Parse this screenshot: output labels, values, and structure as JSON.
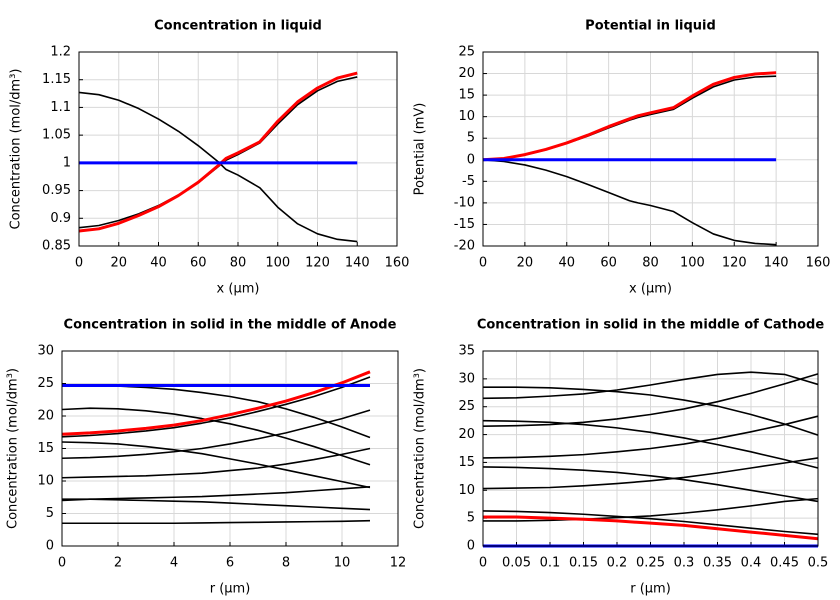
{
  "chart_data": [
    {
      "type": "line",
      "title": "Concentration in liquid",
      "xlabel": "x (µm)",
      "ylabel": "Concentration (mol/dm³)",
      "x": [
        0,
        10,
        20,
        30,
        40,
        50,
        60,
        70,
        74,
        80,
        91,
        100,
        110,
        120,
        130,
        140
      ],
      "series": [
        {
          "color": "#000000",
          "values": [
            1.127,
            1.123,
            1.113,
            1.098,
            1.079,
            1.057,
            1.031,
            1.002,
            0.988,
            0.978,
            0.955,
            0.92,
            0.89,
            0.872,
            0.862,
            0.858
          ]
        },
        {
          "color": "#000000",
          "values": [
            0.883,
            0.887,
            0.896,
            0.908,
            0.923,
            0.942,
            0.964,
            0.993,
            1.005,
            1.015,
            1.036,
            1.07,
            1.105,
            1.13,
            1.147,
            1.155
          ]
        },
        {
          "color": "#ff0000",
          "values": [
            0.877,
            0.881,
            0.891,
            0.905,
            0.921,
            0.941,
            0.965,
            0.995,
            1.008,
            1.018,
            1.038,
            1.075,
            1.11,
            1.135,
            1.153,
            1.162
          ]
        },
        {
          "color": "#0000ff",
          "values": [
            1,
            1,
            1,
            1,
            1,
            1,
            1,
            1,
            1,
            1,
            1,
            1,
            1,
            1,
            1,
            1
          ]
        }
      ],
      "xlim": [
        0,
        160
      ],
      "xticks": [
        0,
        20,
        40,
        60,
        80,
        100,
        120,
        140,
        160
      ],
      "ylim": [
        0.85,
        1.2
      ],
      "yticks": [
        0.85,
        0.9,
        0.95,
        1,
        1.05,
        1.1,
        1.15,
        1.2
      ],
      "grid": true
    },
    {
      "type": "line",
      "title": "Potential in liquid",
      "xlabel": "x (µm)",
      "ylabel": "Potential (mV)",
      "x": [
        0,
        10,
        20,
        30,
        40,
        50,
        60,
        70,
        74,
        80,
        91,
        100,
        110,
        120,
        130,
        140
      ],
      "series": [
        {
          "color": "#000000",
          "values": [
            0,
            -0.4,
            -1.2,
            -2.4,
            -3.9,
            -5.7,
            -7.6,
            -9.5,
            -10.0,
            -10.6,
            -12.0,
            -14.6,
            -17.2,
            -18.7,
            -19.4,
            -19.7
          ]
        },
        {
          "color": "#000000",
          "values": [
            0,
            0.3,
            1.1,
            2.3,
            3.8,
            5.5,
            7.4,
            9.2,
            9.8,
            10.5,
            11.7,
            14.3,
            16.9,
            18.5,
            19.2,
            19.4
          ]
        },
        {
          "color": "#ff0000",
          "values": [
            0,
            0.3,
            1.2,
            2.4,
            3.9,
            5.7,
            7.7,
            9.5,
            10.2,
            10.9,
            12.1,
            14.8,
            17.5,
            19.1,
            19.9,
            20.2
          ]
        },
        {
          "color": "#0000ff",
          "values": [
            0,
            0,
            0,
            0,
            0,
            0,
            0,
            0,
            0,
            0,
            0,
            0,
            0,
            0,
            0,
            0
          ]
        }
      ],
      "xlim": [
        0,
        160
      ],
      "xticks": [
        0,
        20,
        40,
        60,
        80,
        100,
        120,
        140,
        160
      ],
      "ylim": [
        -20,
        25
      ],
      "yticks": [
        -20,
        -15,
        -10,
        -5,
        0,
        5,
        10,
        15,
        20,
        25
      ],
      "grid": true
    },
    {
      "type": "line",
      "title": "Concentration in solid in the middle of Anode",
      "xlabel": "r (µm)",
      "ylabel": "Concentration (mol/dm³)",
      "x": [
        0,
        1,
        2,
        3,
        4,
        5,
        6,
        7,
        8,
        9,
        10,
        11
      ],
      "series": [
        {
          "color": "#000000",
          "values": [
            24.8,
            24.7,
            24.6,
            24.4,
            24.1,
            23.6,
            23,
            22.2,
            21.1,
            19.8,
            18.3,
            16.7
          ]
        },
        {
          "color": "#000000",
          "values": [
            21,
            21.2,
            21.1,
            20.8,
            20.3,
            19.6,
            18.8,
            17.8,
            16.6,
            15.3,
            13.9,
            12.5
          ]
        },
        {
          "color": "#000000",
          "values": [
            16,
            15.9,
            15.7,
            15.3,
            14.8,
            14.2,
            13.4,
            12.6,
            11.7,
            10.8,
            9.9,
            9.0
          ]
        },
        {
          "color": "#000000",
          "values": [
            7.2,
            7.2,
            7.1,
            7.0,
            6.9,
            6.8,
            6.6,
            6.4,
            6.2,
            6.0,
            5.8,
            5.6
          ]
        },
        {
          "color": "#000000",
          "values": [
            3.5,
            3.5,
            3.5,
            3.5,
            3.5,
            3.55,
            3.6,
            3.65,
            3.7,
            3.75,
            3.8,
            3.9
          ]
        },
        {
          "color": "#000000",
          "values": [
            7.0,
            7.2,
            7.3,
            7.4,
            7.5,
            7.6,
            7.8,
            8.0,
            8.2,
            8.5,
            8.8,
            9.1
          ]
        },
        {
          "color": "#000000",
          "values": [
            10.5,
            10.6,
            10.7,
            10.8,
            11.0,
            11.2,
            11.6,
            12.0,
            12.6,
            13.3,
            14.1,
            15
          ]
        },
        {
          "color": "#000000",
          "values": [
            13.5,
            13.6,
            13.8,
            14.1,
            14.5,
            15.0,
            15.7,
            16.5,
            17.4,
            18.5,
            19.6,
            20.9
          ]
        },
        {
          "color": "#000000",
          "values": [
            16.8,
            17.0,
            17.3,
            17.7,
            18.2,
            18.9,
            19.7,
            20.7,
            21.8,
            23.0,
            24.4,
            26
          ]
        },
        {
          "color": "#ff0000",
          "values": [
            17.2,
            17.4,
            17.7,
            18.1,
            18.6,
            19.3,
            20.2,
            21.2,
            22.3,
            23.6,
            25.1,
            26.8
          ]
        },
        {
          "color": "#0000ff",
          "values": [
            24.7,
            24.7,
            24.7,
            24.7,
            24.7,
            24.7,
            24.7,
            24.7,
            24.7,
            24.7,
            24.7,
            24.7
          ]
        }
      ],
      "xlim": [
        0,
        12
      ],
      "xticks": [
        0,
        2,
        4,
        6,
        8,
        10,
        12
      ],
      "ylim": [
        0,
        30
      ],
      "yticks": [
        0,
        5,
        10,
        15,
        20,
        25,
        30
      ],
      "grid": true
    },
    {
      "type": "line",
      "title": "Concentration in solid in the middle of Cathode",
      "xlabel": "r (µm)",
      "ylabel": "Concentration (mol/dm³)",
      "x": [
        0,
        0.05,
        0.1,
        0.15,
        0.2,
        0.25,
        0.3,
        0.35,
        0.4,
        0.45,
        0.5
      ],
      "series": [
        {
          "color": "#000000",
          "values": [
            28.5,
            28.5,
            28.4,
            28.1,
            27.7,
            27.1,
            26.2,
            25.1,
            23.6,
            21.9,
            19.9
          ]
        },
        {
          "color": "#000000",
          "values": [
            26.5,
            26.6,
            26.9,
            27.3,
            28.0,
            28.9,
            29.9,
            30.8,
            31.2,
            30.8,
            29.0
          ]
        },
        {
          "color": "#000000",
          "values": [
            22.5,
            22.4,
            22.2,
            21.8,
            21.2,
            20.4,
            19.4,
            18.2,
            16.9,
            15.5,
            14.0
          ]
        },
        {
          "color": "#000000",
          "values": [
            21.5,
            21.6,
            21.8,
            22.2,
            22.8,
            23.6,
            24.6,
            25.9,
            27.4,
            29.1,
            30.9
          ]
        },
        {
          "color": "#000000",
          "values": [
            15.8,
            15.9,
            16.1,
            16.4,
            16.9,
            17.5,
            18.3,
            19.3,
            20.5,
            21.8,
            23.3
          ]
        },
        {
          "color": "#000000",
          "values": [
            14.2,
            14.1,
            13.9,
            13.6,
            13.2,
            12.6,
            11.9,
            11.0,
            10.0,
            9.0,
            8.0
          ]
        },
        {
          "color": "#000000",
          "values": [
            10.3,
            10.4,
            10.5,
            10.8,
            11.2,
            11.7,
            12.3,
            13.1,
            14.0,
            14.9,
            15.8
          ]
        },
        {
          "color": "#000000",
          "values": [
            6.3,
            6.2,
            6.0,
            5.7,
            5.3,
            4.9,
            4.4,
            3.8,
            3.2,
            2.6,
            2.1
          ]
        },
        {
          "color": "#000000",
          "values": [
            4.5,
            4.5,
            4.6,
            4.8,
            5.1,
            5.4,
            5.9,
            6.5,
            7.2,
            8.0,
            8.5
          ]
        },
        {
          "color": "#ff0000",
          "values": [
            5.2,
            5.2,
            5.0,
            4.8,
            4.5,
            4.1,
            3.7,
            3.1,
            2.5,
            1.9,
            1.3
          ]
        },
        {
          "color": "#0000ff",
          "values": [
            0,
            0,
            0,
            0,
            0,
            0,
            0,
            0,
            0,
            0,
            0
          ]
        }
      ],
      "xlim": [
        0,
        0.5
      ],
      "xticks": [
        0,
        0.05,
        0.1,
        0.15,
        0.2,
        0.25,
        0.3,
        0.35,
        0.4,
        0.45,
        0.5
      ],
      "ylim": [
        0,
        35
      ],
      "yticks": [
        0,
        5,
        10,
        15,
        20,
        25,
        30,
        35
      ],
      "grid": true
    }
  ]
}
